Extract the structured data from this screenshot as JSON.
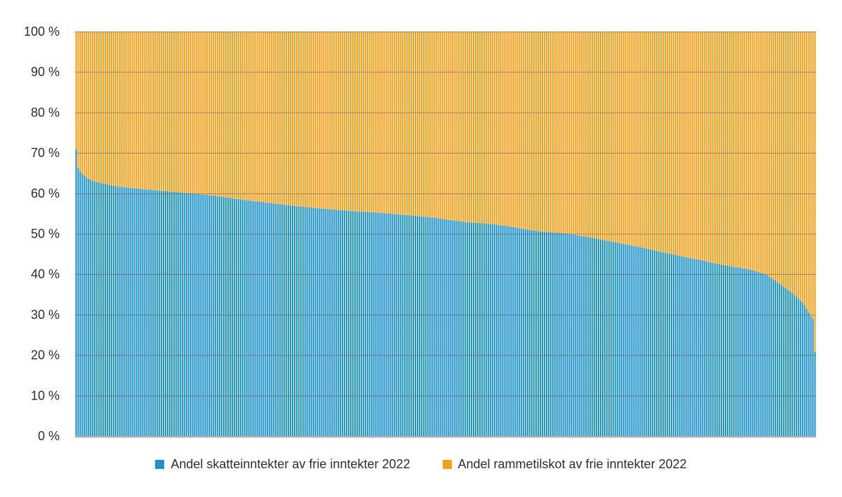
{
  "figure": {
    "background_color": "#ffffff",
    "text_color": "#2d2d2c",
    "gridline_color": "#4d4d4d",
    "baseline_color": "#b9b9b9"
  },
  "legend": {
    "items": [
      {
        "label": "Andel skatteinntekter av frie inntekter 2022",
        "color": "#1f93c8"
      },
      {
        "label": "Andel rammetilskot av frie inntekter 2022",
        "color": "#f5a01b"
      }
    ]
  },
  "chart_data": {
    "type": "bar",
    "variant": "100-percent-stacked-vertical",
    "bar_count": 356,
    "xlabel": "",
    "ylabel": "",
    "ylim": [
      0,
      100
    ],
    "grid": true,
    "legend_position": "bottom-center",
    "y_tick_labels": [
      "100 %",
      "90 %",
      "80 %",
      "70 %",
      "60 %",
      "50 %",
      "40 %",
      "30 %",
      "20 %",
      "10 %",
      "0 %"
    ],
    "stack_total": 100,
    "series": [
      {
        "name": "Andel skatteinntekter av frie inntekter 2022",
        "color": "#1f93c8",
        "values": [
          71.0,
          66.2,
          65.4,
          64.8,
          64.3,
          63.9,
          63.6,
          63.3,
          63.1,
          62.9,
          62.8,
          62.7,
          62.5,
          62.4,
          62.3,
          62.2,
          62.1,
          62.0,
          61.9,
          61.8,
          61.7,
          61.6,
          61.6,
          61.5,
          61.5,
          61.4,
          61.3,
          61.3,
          61.2,
          61.2,
          61.1,
          61.1,
          61.0,
          61.0,
          60.9,
          60.9,
          60.9,
          60.8,
          60.8,
          60.7,
          60.7,
          60.6,
          60.6,
          60.6,
          60.5,
          60.5,
          60.4,
          60.4,
          60.3,
          60.3,
          60.2,
          60.2,
          60.1,
          60.1,
          60.0,
          60.0,
          60.0,
          59.9,
          59.8,
          59.8,
          59.7,
          59.7,
          59.6,
          59.6,
          59.5,
          59.5,
          59.4,
          59.4,
          59.3,
          59.2,
          59.2,
          59.1,
          59.0,
          58.9,
          58.9,
          58.8,
          58.7,
          58.6,
          58.6,
          58.5,
          58.4,
          58.3,
          58.3,
          58.2,
          58.2,
          58.1,
          58.0,
          58.0,
          57.9,
          57.9,
          57.8,
          57.7,
          57.7,
          57.6,
          57.6,
          57.5,
          57.4,
          57.4,
          57.3,
          57.3,
          57.2,
          57.1,
          57.1,
          57.0,
          57.0,
          56.9,
          56.8,
          56.8,
          56.7,
          56.7,
          56.6,
          56.6,
          56.5,
          56.5,
          56.4,
          56.4,
          56.3,
          56.3,
          56.2,
          56.2,
          56.2,
          56.1,
          56.1,
          56.0,
          56.0,
          55.9,
          55.9,
          55.8,
          55.8,
          55.8,
          55.7,
          55.7,
          55.6,
          55.6,
          55.6,
          55.5,
          55.5,
          55.5,
          55.4,
          55.4,
          55.4,
          55.3,
          55.3,
          55.3,
          55.2,
          55.2,
          55.1,
          55.1,
          55.1,
          55.0,
          55.0,
          55.0,
          54.9,
          54.9,
          54.8,
          54.8,
          54.7,
          54.7,
          54.6,
          54.6,
          54.6,
          54.5,
          54.5,
          54.4,
          54.4,
          54.3,
          54.3,
          54.2,
          54.2,
          54.2,
          54.1,
          54.0,
          54.0,
          53.9,
          53.8,
          53.7,
          53.7,
          53.6,
          53.5,
          53.4,
          53.4,
          53.3,
          53.2,
          53.2,
          53.1,
          53.0,
          53.0,
          52.9,
          52.9,
          52.8,
          52.8,
          52.8,
          52.7,
          52.7,
          52.6,
          52.6,
          52.6,
          52.5,
          52.5,
          52.4,
          52.4,
          52.3,
          52.3,
          52.2,
          52.1,
          52.0,
          52.0,
          51.9,
          51.8,
          51.7,
          51.7,
          51.6,
          51.5,
          51.4,
          51.3,
          51.2,
          51.1,
          51.1,
          51.0,
          50.9,
          50.8,
          50.7,
          50.6,
          50.6,
          50.5,
          50.5,
          50.5,
          50.4,
          50.4,
          50.3,
          50.3,
          50.3,
          50.2,
          50.2,
          50.1,
          50.1,
          50.0,
          49.9,
          49.8,
          49.8,
          49.7,
          49.6,
          49.5,
          49.4,
          49.3,
          49.3,
          49.2,
          49.1,
          49.0,
          48.9,
          48.8,
          48.7,
          48.6,
          48.5,
          48.4,
          48.3,
          48.2,
          48.1,
          48.0,
          47.9,
          47.8,
          47.7,
          47.6,
          47.5,
          47.4,
          47.3,
          47.2,
          47.1,
          47.0,
          46.9,
          46.8,
          46.7,
          46.6,
          46.5,
          46.3,
          46.2,
          46.1,
          46.0,
          45.9,
          45.8,
          45.6,
          45.5,
          45.4,
          45.3,
          45.2,
          45.1,
          45.0,
          44.9,
          44.8,
          44.6,
          44.5,
          44.4,
          44.3,
          44.2,
          44.1,
          44.0,
          43.9,
          43.8,
          43.7,
          43.6,
          43.5,
          43.4,
          43.3,
          43.1,
          43.0,
          42.9,
          42.8,
          42.7,
          42.6,
          42.5,
          42.4,
          42.3,
          42.2,
          42.1,
          42.0,
          41.9,
          41.8,
          41.7,
          41.7,
          41.6,
          41.5,
          41.4,
          41.3,
          41.2,
          41.1,
          41.0,
          40.8,
          40.7,
          40.5,
          40.3,
          40.1,
          40.0,
          39.8,
          39.4,
          39.1,
          38.7,
          38.4,
          38.0,
          37.6,
          37.3,
          36.9,
          36.6,
          36.2,
          35.8,
          35.4,
          34.9,
          34.5,
          34.0,
          33.5,
          33.0,
          32.3,
          31.5,
          30.5,
          29.6,
          29.0,
          20.8
        ]
      },
      {
        "name": "Andel rammetilskot av frie inntekter 2022",
        "color": "#f5a01b",
        "derived": "stack_total minus skatteinntekter value for each bar"
      }
    ]
  }
}
